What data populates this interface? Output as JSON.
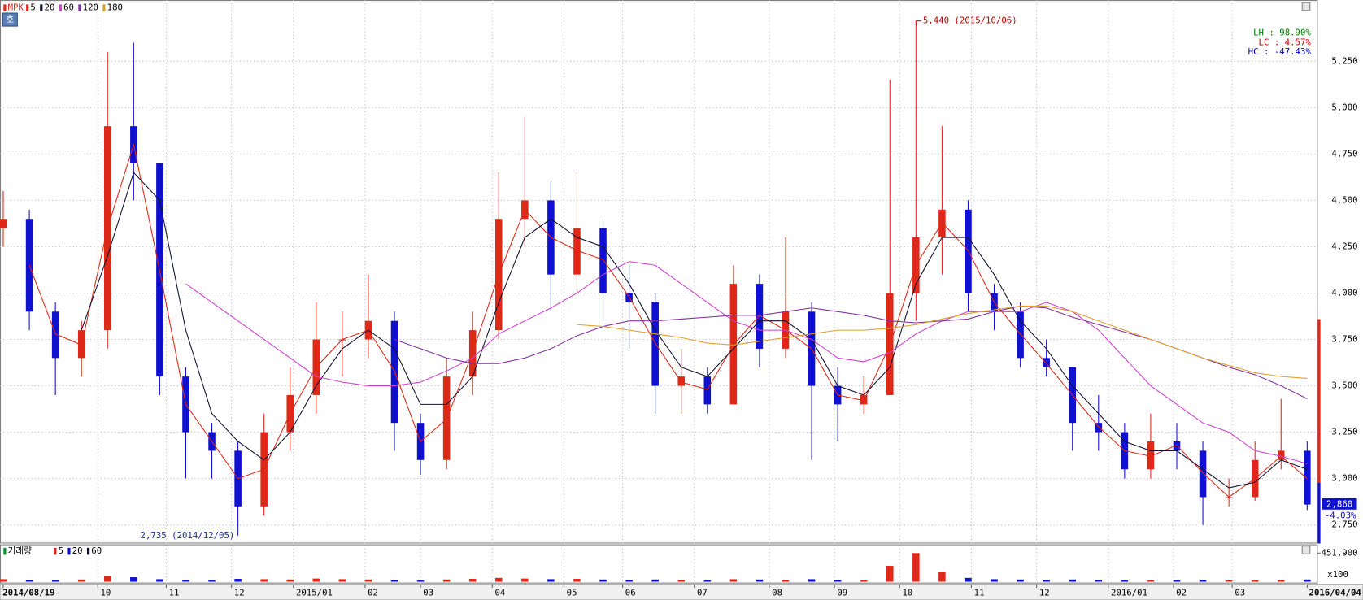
{
  "chart_data": {
    "type": "candlestick",
    "symbol": "MPK",
    "x": [
      0,
      8,
      16,
      24,
      32,
      40,
      48,
      56,
      64,
      72,
      80,
      88,
      96,
      104,
      112,
      120,
      128,
      136,
      144,
      152,
      160,
      168,
      176,
      184,
      192,
      200,
      208,
      216,
      224,
      232,
      240,
      248,
      256,
      264,
      272,
      280,
      288,
      296,
      304,
      312,
      320,
      328,
      336,
      344,
      352,
      360,
      368,
      376,
      384,
      392,
      400
    ],
    "open": [
      4350,
      4400,
      3900,
      3650,
      3800,
      4900,
      4700,
      3550,
      3250,
      3150,
      2850,
      3250,
      3450,
      3750,
      3750,
      3850,
      3300,
      3100,
      3550,
      3800,
      4400,
      4500,
      4100,
      4350,
      4000,
      3950,
      3500,
      3550,
      3400,
      4050,
      3700,
      3900,
      3500,
      3400,
      3450,
      4000,
      4300,
      4450,
      4000,
      3900,
      3650,
      3600,
      3300,
      3250,
      3050,
      3200,
      3150,
      2900,
      2900,
      3100,
      3150
    ],
    "high": [
      4550,
      4450,
      3950,
      3850,
      5300,
      5350,
      4700,
      3600,
      3300,
      3200,
      3350,
      3600,
      3950,
      3900,
      4100,
      3900,
      3350,
      3650,
      3900,
      4650,
      4950,
      4600,
      4650,
      4400,
      4150,
      4000,
      3700,
      3600,
      4150,
      4100,
      4300,
      3950,
      3600,
      3550,
      5150,
      5440,
      4900,
      4500,
      4050,
      3950,
      3750,
      3600,
      3450,
      3300,
      3350,
      3300,
      3200,
      3000,
      3200,
      3430,
      3200
    ],
    "low": [
      4250,
      3800,
      3450,
      3550,
      3700,
      4500,
      3450,
      3000,
      3000,
      2735,
      2800,
      3150,
      3350,
      3550,
      3650,
      3150,
      3020,
      3050,
      3450,
      3750,
      4250,
      3900,
      4000,
      3850,
      3700,
      3350,
      3350,
      3350,
      3400,
      3600,
      3650,
      3100,
      3200,
      3350,
      3450,
      3850,
      4100,
      3900,
      3800,
      3600,
      3550,
      3150,
      3150,
      3000,
      3000,
      3050,
      2750,
      2850,
      2880,
      3050,
      2830
    ],
    "close": [
      4400,
      3900,
      3650,
      3800,
      4900,
      4700,
      3550,
      3250,
      3150,
      2850,
      3250,
      3450,
      3750,
      3750,
      3850,
      3300,
      3100,
      3550,
      3800,
      4400,
      4500,
      4100,
      4350,
      4000,
      3950,
      3500,
      3550,
      3400,
      4050,
      3700,
      3900,
      3500,
      3400,
      3450,
      4000,
      4300,
      4450,
      4000,
      3900,
      3650,
      3600,
      3300,
      3250,
      3050,
      3200,
      3150,
      2900,
      2900,
      3100,
      3150,
      2860
    ],
    "up_color": "#e02818",
    "down_color": "#1010d0",
    "series": [
      {
        "name": "5",
        "color": "#e02818",
        "values": [
          null,
          4150,
          3780,
          3720,
          4350,
          4800,
          4120,
          3400,
          3200,
          3000,
          3050,
          3350,
          3600,
          3750,
          3800,
          3580,
          3200,
          3320,
          3680,
          4100,
          4450,
          4300,
          4230,
          4180,
          3980,
          3730,
          3520,
          3480,
          3720,
          3880,
          3800,
          3700,
          3450,
          3420,
          3720,
          4150,
          4380,
          4230,
          3950,
          3780,
          3620,
          3450,
          3280,
          3150,
          3120,
          3180,
          3030,
          2900,
          3000,
          3120,
          3000
        ]
      },
      {
        "name": "20",
        "color": "#101030",
        "values": [
          null,
          null,
          null,
          3800,
          4200,
          4650,
          4500,
          3800,
          3350,
          3200,
          3100,
          3250,
          3500,
          3700,
          3800,
          3700,
          3400,
          3400,
          3550,
          3950,
          4300,
          4400,
          4300,
          4250,
          4050,
          3800,
          3600,
          3550,
          3700,
          3850,
          3850,
          3750,
          3500,
          3450,
          3600,
          4050,
          4300,
          4300,
          4100,
          3850,
          3700,
          3500,
          3350,
          3200,
          3150,
          3150,
          3050,
          2950,
          2980,
          3100,
          3050
        ]
      },
      {
        "name": "60",
        "color": "#d040d0",
        "values": [
          null,
          null,
          null,
          null,
          null,
          null,
          null,
          4050,
          3950,
          3850,
          3750,
          3650,
          3550,
          3520,
          3500,
          3500,
          3520,
          3580,
          3650,
          3780,
          3850,
          3920,
          4000,
          4100,
          4170,
          4150,
          4050,
          3950,
          3850,
          3800,
          3800,
          3750,
          3650,
          3630,
          3680,
          3780,
          3850,
          3900,
          3900,
          3900,
          3950,
          3900,
          3800,
          3650,
          3500,
          3400,
          3300,
          3250,
          3150,
          3120,
          3080
        ]
      },
      {
        "name": "120",
        "color": "#8030a0",
        "values": [
          null,
          null,
          null,
          null,
          null,
          null,
          null,
          null,
          null,
          null,
          null,
          null,
          null,
          null,
          null,
          3750,
          3700,
          3650,
          3620,
          3620,
          3650,
          3700,
          3770,
          3820,
          3850,
          3850,
          3860,
          3870,
          3880,
          3880,
          3900,
          3920,
          3900,
          3880,
          3850,
          3840,
          3850,
          3860,
          3900,
          3930,
          3920,
          3870,
          3830,
          3790,
          3750,
          3700,
          3650,
          3600,
          3560,
          3500,
          3430
        ]
      },
      {
        "name": "180",
        "color": "#e0a030",
        "values": [
          null,
          null,
          null,
          null,
          null,
          null,
          null,
          null,
          null,
          null,
          null,
          null,
          null,
          null,
          null,
          null,
          null,
          null,
          null,
          null,
          null,
          null,
          3830,
          3820,
          3800,
          3780,
          3760,
          3730,
          3720,
          3740,
          3760,
          3780,
          3800,
          3800,
          3810,
          3830,
          3860,
          3890,
          3910,
          3930,
          3930,
          3900,
          3850,
          3800,
          3750,
          3700,
          3650,
          3610,
          3570,
          3550,
          3540
        ]
      }
    ],
    "xlim": [
      -1,
      403
    ],
    "xticks": [
      {
        "value": 0,
        "label": "2014/08/19"
      },
      {
        "value": 29,
        "label": "10"
      },
      {
        "value": 50,
        "label": "11"
      },
      {
        "value": 70,
        "label": "12"
      },
      {
        "value": 89,
        "label": "2015/01"
      },
      {
        "value": 111,
        "label": "02"
      },
      {
        "value": 128,
        "label": "03"
      },
      {
        "value": 150,
        "label": "04"
      },
      {
        "value": 172,
        "label": "05"
      },
      {
        "value": 190,
        "label": "06"
      },
      {
        "value": 212,
        "label": "07"
      },
      {
        "value": 235,
        "label": "08"
      },
      {
        "value": 255,
        "label": "09"
      },
      {
        "value": 275,
        "label": "10"
      },
      {
        "value": 297,
        "label": "11"
      },
      {
        "value": 317,
        "label": "12"
      },
      {
        "value": 339,
        "label": "2016/01"
      },
      {
        "value": 359,
        "label": "02"
      },
      {
        "value": 377,
        "label": "03"
      },
      {
        "value": 400,
        "label": "2016/04/04"
      }
    ],
    "ylim": [
      2650,
      5580
    ],
    "yticks": [
      {
        "value": 2750,
        "label": "2,750"
      },
      {
        "value": 3000,
        "label": "3,000"
      },
      {
        "value": 3250,
        "label": "3,250"
      },
      {
        "value": 3500,
        "label": "3,500"
      },
      {
        "value": 3750,
        "label": "3,750"
      },
      {
        "value": 4000,
        "label": "4,000"
      },
      {
        "value": 4250,
        "label": "4,250"
      },
      {
        "value": 4500,
        "label": "4,500"
      },
      {
        "value": 4750,
        "label": "4,750"
      },
      {
        "value": 5000,
        "label": "5,000"
      },
      {
        "value": 5250,
        "label": "5,250"
      }
    ],
    "grid": true,
    "annotations": [
      {
        "text": "5,440 (2015/10/06)",
        "color": "#c00000"
      },
      {
        "text": "2,735 (2014/12/05)",
        "color": "#1a2a9a"
      }
    ],
    "stats": [
      {
        "text": "LH :  98.90%",
        "color": "#008000"
      },
      {
        "text": "LC :   4.57%",
        "color": "#d00000"
      },
      {
        "text": "HC : -47.43%",
        "color": "#0000c0"
      }
    ],
    "last_price_label": "2,860",
    "change_label": "-4.03%",
    "volume": {
      "name": "거래량",
      "unit": "x100",
      "ylim": [
        0,
        480000
      ],
      "yticks": [
        {
          "value": 451900,
          "label": "451,900"
        }
      ],
      "legend": [
        {
          "name": "5",
          "color": "#e02818"
        },
        {
          "name": "20",
          "color": "#1010d0"
        },
        {
          "name": "60",
          "color": "#101030"
        }
      ],
      "values": [
        40000,
        30000,
        25000,
        35000,
        90000,
        70000,
        40000,
        30000,
        25000,
        45000,
        40000,
        35000,
        50000,
        40000,
        35000,
        30000,
        25000,
        35000,
        45000,
        60000,
        50000,
        40000,
        45000,
        35000,
        30000,
        35000,
        30000,
        25000,
        40000,
        35000,
        30000,
        40000,
        30000,
        25000,
        250000,
        451900,
        150000,
        60000,
        40000,
        35000,
        30000,
        35000,
        30000,
        25000,
        20000,
        25000,
        30000,
        20000,
        25000,
        30000,
        35000
      ]
    }
  }
}
